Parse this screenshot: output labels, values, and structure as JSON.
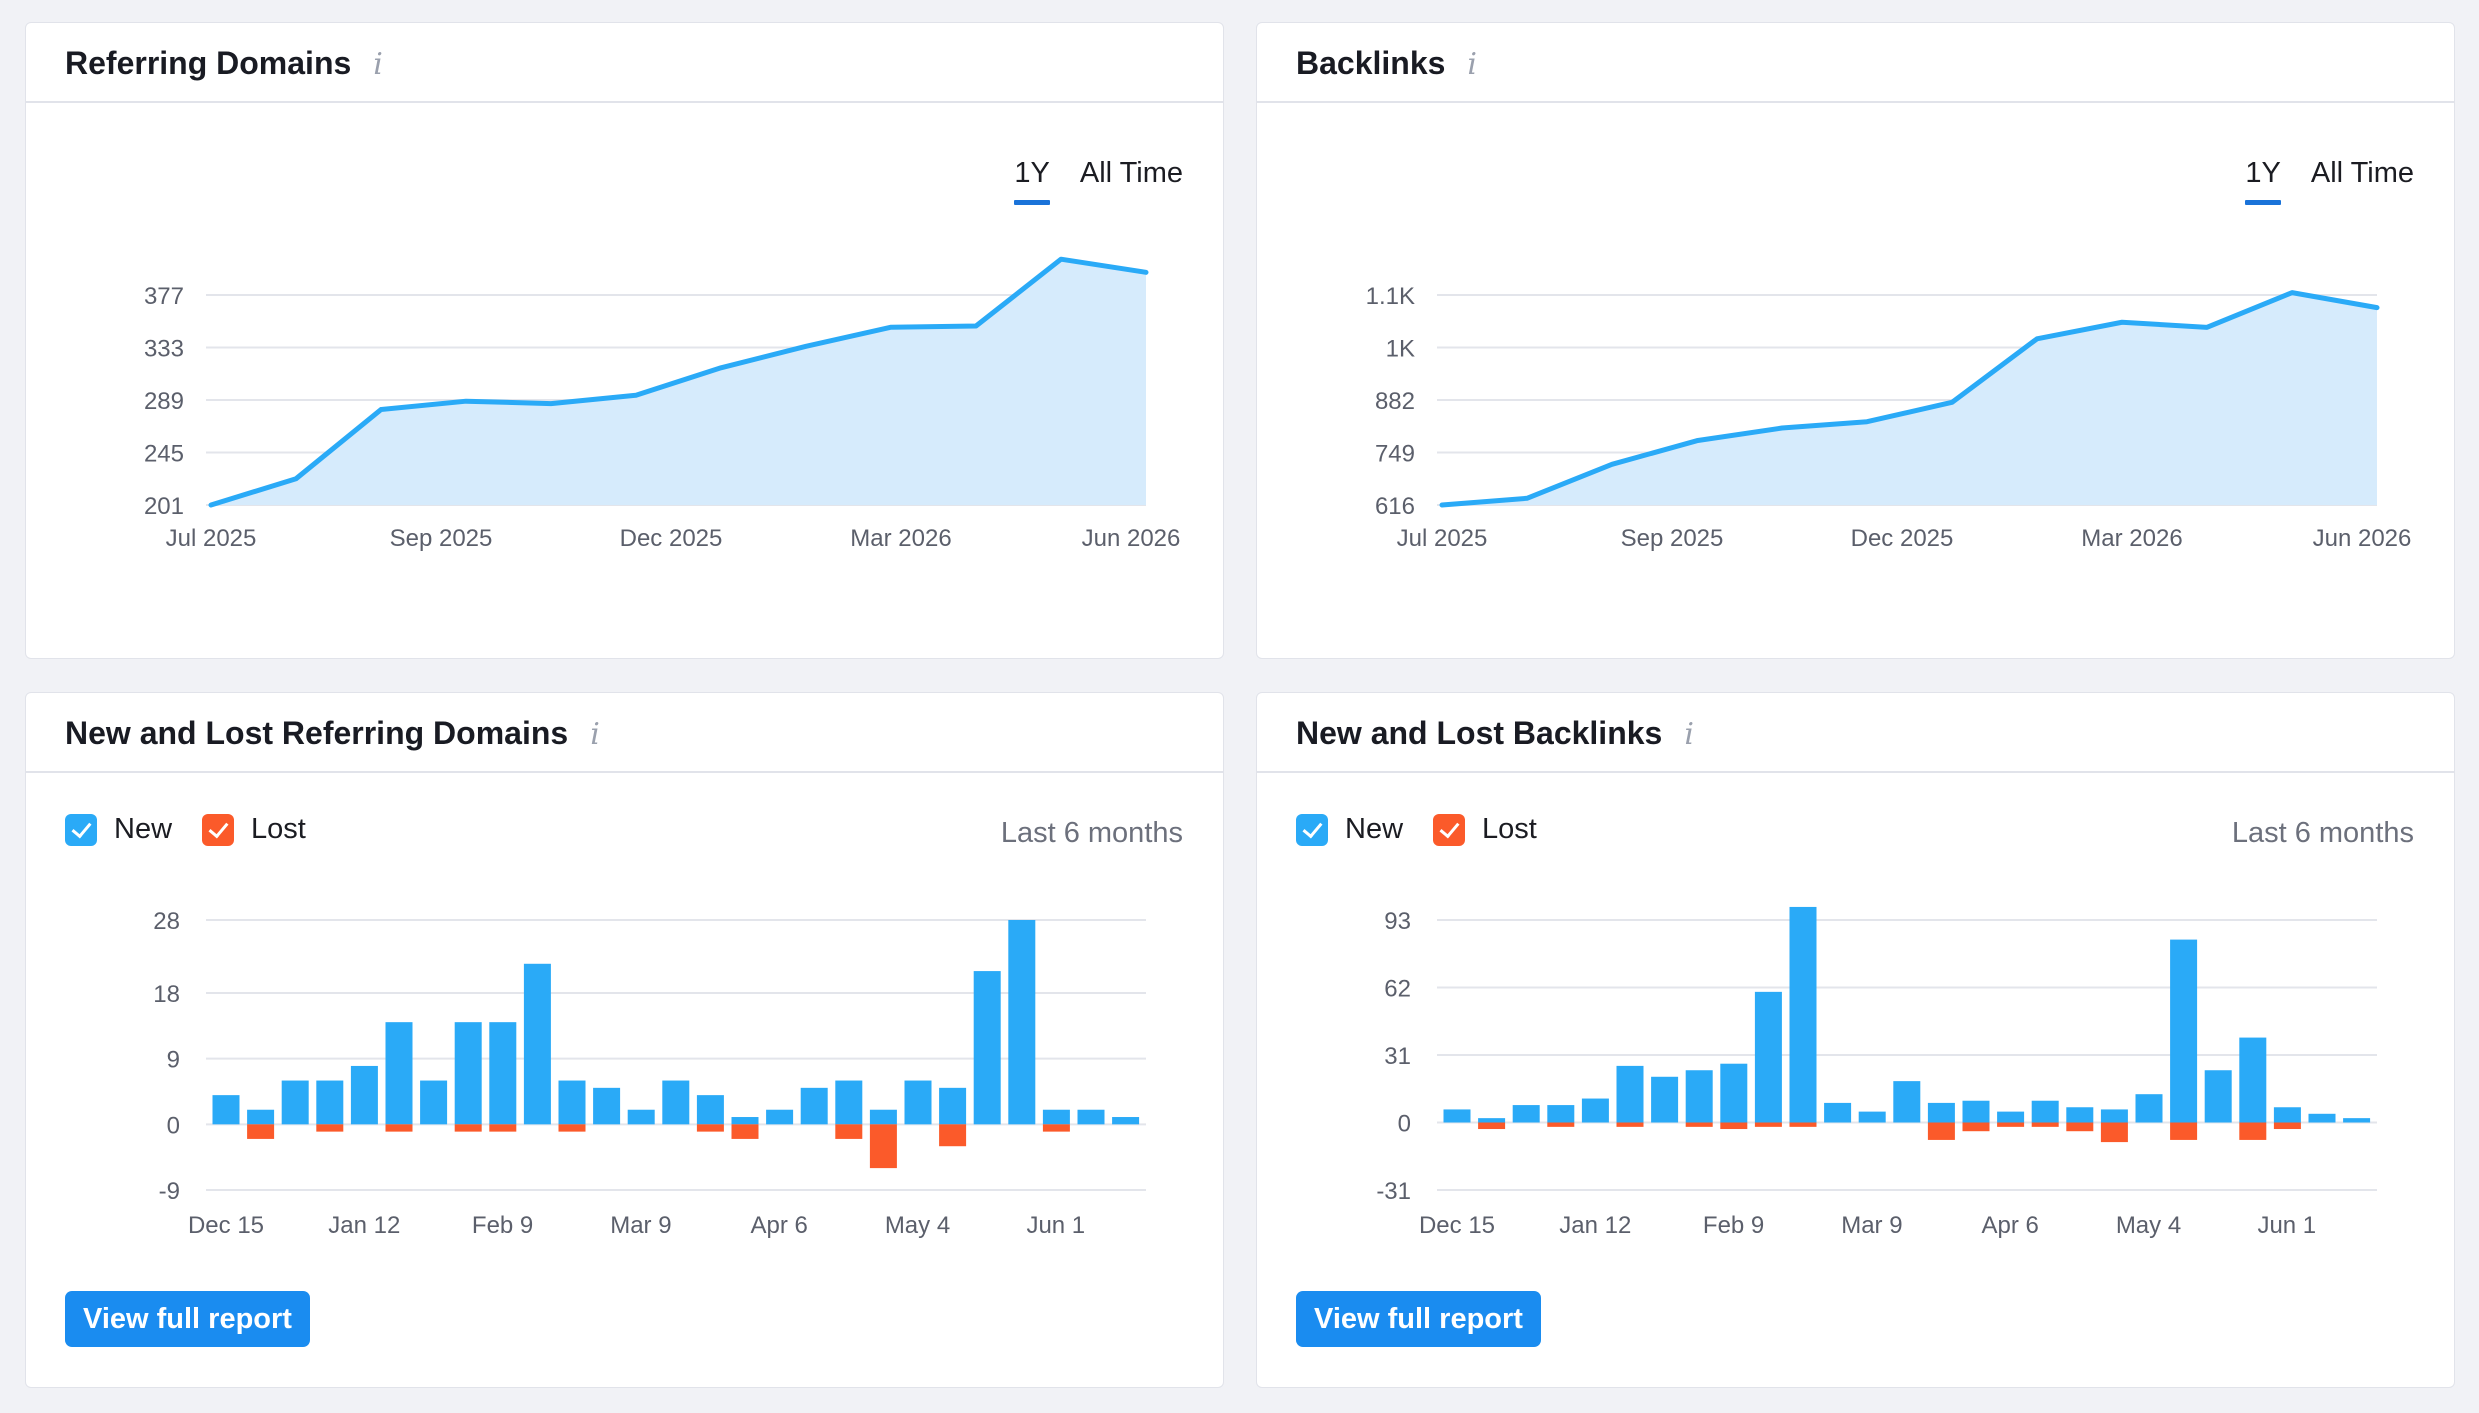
{
  "colors": {
    "new": "#2aaaf7",
    "lost": "#fb5a2a",
    "line": "#2aaaf7",
    "area": "#d6ebfc",
    "button": "#1a8cf0",
    "active_tab": "#1a73d9"
  },
  "icons": {
    "info": "info-icon",
    "check": "checkbox-check-icon"
  },
  "referring_domains": {
    "title": "Referring Domains",
    "info_symbol": "i",
    "tabs": [
      {
        "label": "1Y",
        "active": true
      },
      {
        "label": "All Time",
        "active": false
      }
    ]
  },
  "backlinks": {
    "title": "Backlinks",
    "info_symbol": "i",
    "tabs": [
      {
        "label": "1Y",
        "active": true
      },
      {
        "label": "All Time",
        "active": false
      }
    ]
  },
  "new_lost_referring_domains": {
    "title": "New and Lost Referring Domains",
    "info_symbol": "i",
    "legend_new": "New",
    "legend_lost": "Lost",
    "period": "Last 6 months",
    "button": "View full report"
  },
  "new_lost_backlinks": {
    "title": "New and Lost Backlinks",
    "info_symbol": "i",
    "legend_new": "New",
    "legend_lost": "Lost",
    "period": "Last 6 months",
    "button": "View full report"
  },
  "chart_data": [
    {
      "type": "area",
      "chart": "referring_domains",
      "x_ticks": [
        "Jul 2025",
        "Sep 2025",
        "Dec 2025",
        "Mar 2026",
        "Jun 2026"
      ],
      "y_ticks": [
        "201",
        "245",
        "289",
        "333",
        "377"
      ],
      "ylim": [
        201,
        377
      ],
      "grid": true,
      "series": [
        {
          "values": [
            201,
            223,
            281,
            288,
            286,
            293,
            316,
            334,
            350,
            351,
            407,
            396
          ]
        }
      ]
    },
    {
      "type": "area",
      "chart": "backlinks",
      "x_ticks": [
        "Jul 2025",
        "Sep 2025",
        "Dec 2025",
        "Mar 2026",
        "Jun 2026"
      ],
      "y_ticks": [
        "616",
        "749",
        "882",
        "1K",
        "1.1K"
      ],
      "ylim": [
        616,
        1148
      ],
      "grid": true,
      "series": [
        {
          "values": [
            616,
            633,
            719,
            779,
            811,
            827,
            876,
            1037,
            1079,
            1066,
            1154,
            1116
          ]
        }
      ]
    },
    {
      "type": "bar",
      "chart": "new_lost_referring_domains",
      "x_ticks": [
        "Dec 15",
        "Jan 12",
        "Feb 9",
        "Mar 9",
        "Apr 6",
        "May 4",
        "Jun 1"
      ],
      "y_ticks": [
        "-9",
        "0",
        "9",
        "18",
        "28"
      ],
      "ylim": [
        -9,
        28
      ],
      "grid": true,
      "series": [
        {
          "name": "New",
          "values": [
            4,
            2,
            6,
            6,
            8,
            14,
            6,
            14,
            14,
            22,
            6,
            5,
            2,
            6,
            4,
            1,
            2,
            5,
            6,
            2,
            6,
            5,
            21,
            28,
            2,
            2,
            1
          ]
        },
        {
          "name": "Lost",
          "values": [
            0,
            -2,
            0,
            -1,
            0,
            -1,
            0,
            -1,
            -1,
            0,
            -1,
            0,
            0,
            0,
            -1,
            -2,
            0,
            0,
            -2,
            -6,
            0,
            -3,
            0,
            0,
            -1,
            0,
            0
          ]
        }
      ]
    },
    {
      "type": "bar",
      "chart": "new_lost_backlinks",
      "x_ticks": [
        "Dec 15",
        "Jan 12",
        "Feb 9",
        "Mar 9",
        "Apr 6",
        "May 4",
        "Jun 1"
      ],
      "y_ticks": [
        "-31",
        "0",
        "31",
        "62",
        "93"
      ],
      "ylim": [
        -31,
        93
      ],
      "grid": true,
      "series": [
        {
          "name": "New",
          "values": [
            6,
            2,
            8,
            8,
            11,
            26,
            21,
            24,
            27,
            60,
            99,
            9,
            5,
            19,
            9,
            10,
            5,
            10,
            7,
            6,
            13,
            84,
            24,
            39,
            7,
            4,
            2
          ]
        },
        {
          "name": "Lost",
          "values": [
            0,
            -3,
            0,
            -2,
            0,
            -2,
            0,
            -2,
            -3,
            -2,
            -2,
            0,
            0,
            0,
            -8,
            -4,
            -2,
            -2,
            -4,
            -9,
            0,
            -8,
            0,
            -8,
            -3,
            0,
            0
          ]
        }
      ]
    }
  ]
}
